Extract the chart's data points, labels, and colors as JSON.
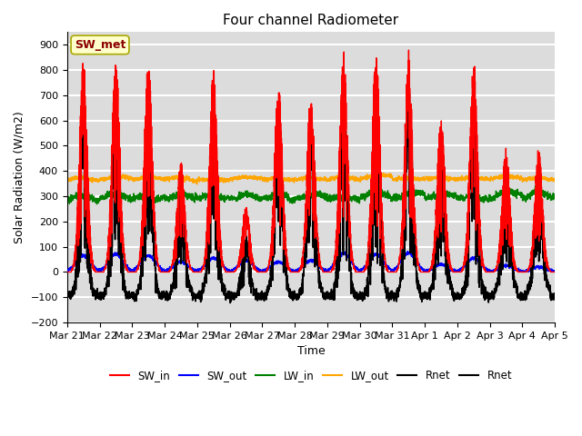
{
  "title": "Four channel Radiometer",
  "xlabel": "Time",
  "ylabel": "Solar Radiation (W/m2)",
  "ylim": [
    -200,
    950
  ],
  "yticks": [
    -200,
    -100,
    0,
    100,
    200,
    300,
    400,
    500,
    600,
    700,
    800,
    900
  ],
  "num_days": 15,
  "x_tick_labels": [
    "Mar 21",
    "Mar 22",
    "Mar 23",
    "Mar 24",
    "Mar 25",
    "Mar 26",
    "Mar 27",
    "Mar 28",
    "Mar 29",
    "Mar 30",
    "Mar 31",
    "Apr 1",
    "Apr 2",
    "Apr 3",
    "Apr 4",
    "Apr 5"
  ],
  "legend_labels": [
    "SW_in",
    "SW_out",
    "LW_in",
    "LW_out",
    "Rnet",
    "Rnet"
  ],
  "legend_colors": [
    "red",
    "blue",
    "green",
    "orange",
    "black",
    "black"
  ],
  "sw_met_label": "SW_met",
  "sw_met_box_color": "#FFFFCC",
  "sw_met_text_color": "#8B0000",
  "sw_met_edge_color": "#AAAA00",
  "background_color": "#DCDCDC",
  "grid_color": "white",
  "SW_in_color": "red",
  "SW_out_color": "blue",
  "LW_in_color": "green",
  "LW_out_color": "orange",
  "Rnet_color": "black",
  "sw_in_peaks": [
    840,
    855,
    845,
    440,
    810,
    265,
    750,
    720,
    885,
    870,
    885,
    630,
    840,
    500,
    490
  ],
  "sw_out_peaks": [
    65,
    70,
    65,
    40,
    55,
    45,
    40,
    45,
    75,
    70,
    75,
    30,
    55,
    25,
    20
  ],
  "lw_in_base": 280,
  "lw_out_base": 360,
  "night_rnet": -95
}
